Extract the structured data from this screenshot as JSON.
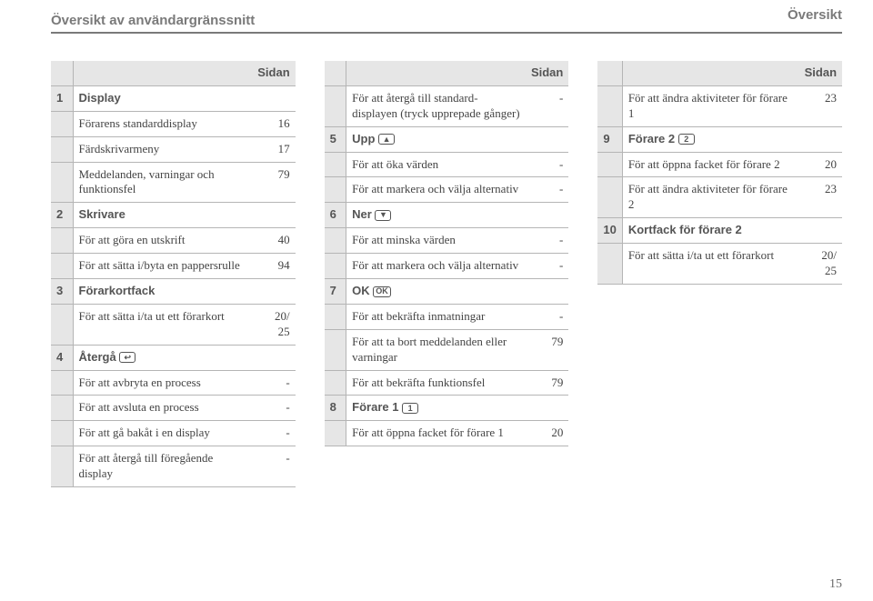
{
  "header": {
    "left": "Översikt av användargränssnitt",
    "right": "Översikt",
    "pageHeader": "Sidan"
  },
  "pageNumber": "15",
  "columns": [
    {
      "rows": [
        {
          "n": "1",
          "bold": true,
          "txt": "Display"
        },
        {
          "txt": "Förarens standarddisplay",
          "pg": "16"
        },
        {
          "txt": "Färdskrivarmeny",
          "pg": "17"
        },
        {
          "txt": "Meddelanden, varningar och funktionsfel",
          "pg": "79"
        },
        {
          "n": "2",
          "bold": true,
          "txt": "Skrivare"
        },
        {
          "txt": "För att göra en utskrift",
          "pg": "40"
        },
        {
          "txt": "För att sätta i/byta en pappersrulle",
          "pg": "94"
        },
        {
          "n": "3",
          "bold": true,
          "txt": "Förarkortfack"
        },
        {
          "txt": "För att sätta i/ta ut ett förarkort",
          "pg": "20/\n25"
        },
        {
          "n": "4",
          "bold": true,
          "txt": "Återgå ",
          "icon": "↩"
        },
        {
          "txt": "För att avbryta en process",
          "pg": "-"
        },
        {
          "txt": "För att avsluta en process",
          "pg": "-"
        },
        {
          "txt": "För att gå bakåt i en display",
          "pg": "-"
        },
        {
          "txt": "För att återgå till föregående display",
          "pg": "-"
        }
      ]
    },
    {
      "rows": [
        {
          "txt": "För att återgå till standard-displayen (tryck upprepade gånger)",
          "pg": "-"
        },
        {
          "n": "5",
          "bold": true,
          "txt": "Upp ",
          "icon": "▲"
        },
        {
          "txt": "För att öka värden",
          "pg": "-"
        },
        {
          "txt": "För att markera och välja alternativ",
          "pg": "-"
        },
        {
          "n": "6",
          "bold": true,
          "txt": "Ner ",
          "icon": "▼"
        },
        {
          "txt": "För att minska värden",
          "pg": "-"
        },
        {
          "txt": "För att markera och välja alternativ",
          "pg": "-"
        },
        {
          "n": "7",
          "bold": true,
          "txt": "OK ",
          "icon": "OK"
        },
        {
          "txt": "För att bekräfta inmatningar",
          "pg": "-"
        },
        {
          "txt": "För att ta bort meddelanden eller varningar",
          "pg": "79"
        },
        {
          "txt": "För att bekräfta funktionsfel",
          "pg": "79"
        },
        {
          "n": "8",
          "bold": true,
          "txt": "Förare 1 ",
          "icon": "1"
        },
        {
          "txt": "För att öppna facket för förare 1",
          "pg": "20"
        }
      ]
    },
    {
      "rows": [
        {
          "txt": "För att ändra aktiviteter för förare 1",
          "pg": "23"
        },
        {
          "n": "9",
          "bold": true,
          "txt": "Förare 2 ",
          "icon": "2"
        },
        {
          "txt": "För att öppna facket för förare 2",
          "pg": "20"
        },
        {
          "txt": "För att ändra aktiviteter för förare 2",
          "pg": "23"
        },
        {
          "n": "10",
          "bold": true,
          "txt": "Kortfack för förare 2"
        },
        {
          "txt": "För att sätta i/ta ut ett förarkort",
          "pg": "20/\n25"
        }
      ]
    }
  ]
}
